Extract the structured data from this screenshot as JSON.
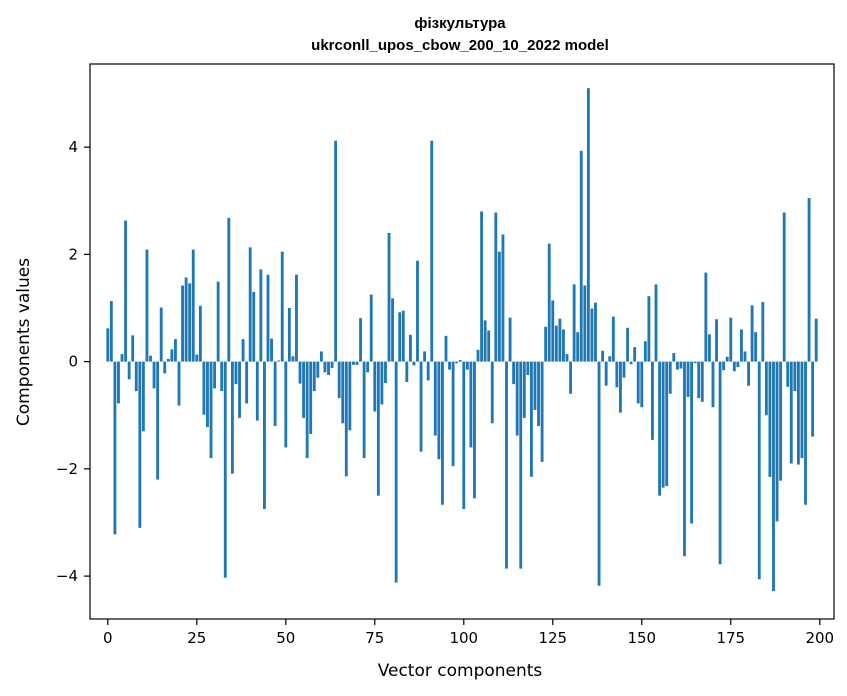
{
  "chart_data": {
    "type": "bar",
    "title": "фізкультура",
    "subtitle": "ukrconll_upos_cbow_200_10_2022 model",
    "xlabel": "Vector components",
    "ylabel": "Components values",
    "xlim": [
      -5,
      204
    ],
    "ylim": [
      -4.8,
      5.55
    ],
    "xticks": [
      0,
      25,
      50,
      75,
      100,
      125,
      150,
      175,
      200
    ],
    "yticks": [
      -4,
      -2,
      0,
      2,
      4
    ],
    "ytick_labels": [
      "−4",
      "−2",
      "0",
      "2",
      "4"
    ],
    "grid": false,
    "color": "#1f77b4",
    "values": [
      0.62,
      1.13,
      -3.22,
      -0.78,
      0.14,
      2.63,
      -0.33,
      0.49,
      -0.55,
      -3.1,
      -1.3,
      2.09,
      0.11,
      -0.5,
      -2.2,
      1.01,
      -0.22,
      0.05,
      0.23,
      0.42,
      -0.82,
      1.42,
      1.57,
      1.46,
      2.09,
      0.13,
      1.04,
      -0.99,
      -1.22,
      -1.8,
      -0.5,
      1.49,
      -0.55,
      -4.03,
      2.68,
      -2.09,
      -0.42,
      -1.05,
      0.42,
      -0.78,
      2.13,
      1.3,
      -1.1,
      1.72,
      -2.75,
      1.62,
      0.43,
      -1.2,
      0.02,
      2.05,
      -1.6,
      1.0,
      0.1,
      1.62,
      -0.41,
      -1.05,
      -1.8,
      -1.35,
      -0.55,
      -0.3,
      0.19,
      -0.2,
      -0.25,
      -0.12,
      4.12,
      -0.68,
      -1.15,
      -2.14,
      -1.28,
      -0.06,
      -0.06,
      0.81,
      -1.8,
      -0.2,
      1.25,
      -0.93,
      -2.5,
      -0.8,
      -0.4,
      2.4,
      1.18,
      -4.12,
      0.92,
      0.95,
      -0.38,
      0.5,
      -0.07,
      1.88,
      -1.68,
      0.19,
      -0.35,
      4.12,
      -1.38,
      -1.82,
      -2.67,
      0.48,
      -0.15,
      -1.95,
      -0.03,
      0.03,
      -2.75,
      -0.15,
      -1.6,
      -2.55,
      0.22,
      2.8,
      0.77,
      0.58,
      -1.15,
      2.78,
      2.05,
      2.37,
      -3.86,
      0.82,
      -0.42,
      -1.38,
      -3.86,
      -1.05,
      -0.25,
      -2.15,
      -0.9,
      -1.2,
      -1.87,
      0.65,
      2.2,
      1.14,
      0.67,
      0.8,
      0.6,
      0.14,
      -0.6,
      1.44,
      0.55,
      3.93,
      1.42,
      5.1,
      0.99,
      1.1,
      -4.18,
      0.2,
      -0.45,
      0.1,
      0.84,
      -0.48,
      -0.95,
      -0.3,
      0.63,
      -0.05,
      0.27,
      -0.78,
      -0.85,
      0.38,
      1.22,
      -1.46,
      1.44,
      -2.5,
      -2.35,
      -2.32,
      -0.6,
      0.16,
      -0.15,
      -0.13,
      -3.63,
      -0.66,
      -3.02,
      -0.03,
      -0.68,
      -0.75,
      1.66,
      0.51,
      -0.85,
      0.79,
      -3.78,
      -0.16,
      0.09,
      0.82,
      -0.18,
      -0.1,
      0.6,
      0.19,
      -0.45,
      1.05,
      0.55,
      -4.06,
      1.11,
      -1.0,
      -2.15,
      -4.28,
      -2.98,
      -2.22,
      2.78,
      -0.47,
      -1.9,
      -0.55,
      -1.92,
      -1.8,
      -2.67,
      3.05,
      -1.4,
      0.8
    ]
  }
}
